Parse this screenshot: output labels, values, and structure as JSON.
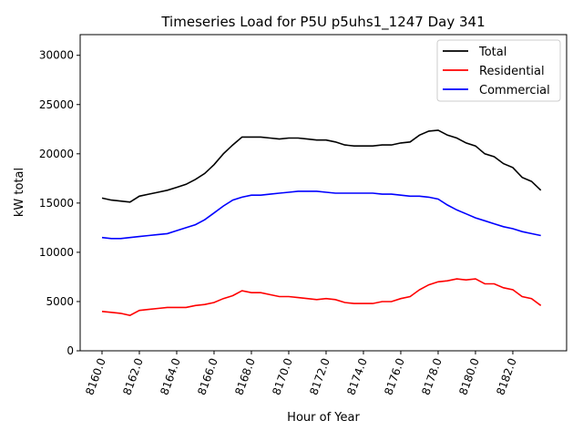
{
  "chart_data": {
    "type": "line",
    "title": "Timeseries Load for P5U p5uhs1_1247  Day 341",
    "xlabel": "Hour of Year",
    "ylabel": "kW total",
    "xlim": [
      8158.83,
      8184.88
    ],
    "ylim": [
      0,
      32100
    ],
    "x_start": 8160,
    "x_step": 0.5,
    "xticks": [
      8160,
      8162,
      8164,
      8166,
      8168,
      8170,
      8172,
      8174,
      8176,
      8178,
      8180,
      8182
    ],
    "xtick_labels": [
      "8160.0",
      "8162.0",
      "8164.0",
      "8166.0",
      "8168.0",
      "8170.0",
      "8172.0",
      "8174.0",
      "8176.0",
      "8178.0",
      "8180.0",
      "8182.0"
    ],
    "yticks": [
      0,
      5000,
      10000,
      15000,
      20000,
      25000,
      30000
    ],
    "ytick_labels": [
      "0",
      "5000",
      "10000",
      "15000",
      "20000",
      "25000",
      "30000"
    ],
    "grid": false,
    "legend_placement": "top-right",
    "series": [
      {
        "name": "Total",
        "color": "#000000",
        "values": [
          15500,
          15300,
          15200,
          15100,
          15700,
          15900,
          16100,
          16300,
          16600,
          16900,
          17400,
          18000,
          18900,
          20000,
          20900,
          21700,
          21700,
          21700,
          21600,
          21500,
          21600,
          21600,
          21500,
          21400,
          21400,
          21200,
          20900,
          20800,
          20800,
          20800,
          20900,
          20900,
          21100,
          21200,
          21900,
          22300,
          22400,
          21900,
          21600,
          21100,
          20800,
          20000,
          19700,
          19000,
          18600,
          17600,
          17200,
          16300
        ]
      },
      {
        "name": "Residential",
        "color": "#ff0000",
        "values": [
          4000,
          3900,
          3800,
          3600,
          4100,
          4200,
          4300,
          4400,
          4400,
          4400,
          4600,
          4700,
          4900,
          5300,
          5600,
          6100,
          5900,
          5900,
          5700,
          5500,
          5500,
          5400,
          5300,
          5200,
          5300,
          5200,
          4900,
          4800,
          4800,
          4800,
          5000,
          5000,
          5300,
          5500,
          6200,
          6700,
          7000,
          7100,
          7300,
          7200,
          7300,
          6800,
          6800,
          6400,
          6200,
          5500,
          5300,
          4600
        ]
      },
      {
        "name": "Commercial",
        "color": "#0000ff",
        "values": [
          11500,
          11400,
          11400,
          11500,
          11600,
          11700,
          11800,
          11900,
          12200,
          12500,
          12800,
          13300,
          14000,
          14700,
          15300,
          15600,
          15800,
          15800,
          15900,
          16000,
          16100,
          16200,
          16200,
          16200,
          16100,
          16000,
          16000,
          16000,
          16000,
          16000,
          15900,
          15900,
          15800,
          15700,
          15700,
          15600,
          15400,
          14800,
          14300,
          13900,
          13500,
          13200,
          12900,
          12600,
          12400,
          12100,
          11900,
          11700
        ]
      }
    ]
  }
}
